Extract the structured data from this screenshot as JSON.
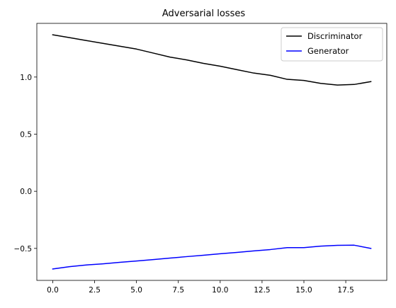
{
  "chart_data": {
    "type": "line",
    "title": "Adversarial losses",
    "xlabel": "",
    "ylabel": "",
    "xlim": [
      -0.95,
      19.95
    ],
    "ylim": [
      -0.78,
      1.47
    ],
    "xticks": [
      0.0,
      2.5,
      5.0,
      7.5,
      10.0,
      12.5,
      15.0,
      17.5
    ],
    "xtick_labels": [
      "0.0",
      "2.5",
      "5.0",
      "7.5",
      "10.0",
      "12.5",
      "15.0",
      "17.5"
    ],
    "yticks": [
      -0.5,
      0.0,
      0.5,
      1.0
    ],
    "ytick_labels": [
      "−0.5",
      "0.0",
      "0.5",
      "1.0"
    ],
    "grid": false,
    "legend_position": "top-right",
    "x": [
      0,
      1,
      2,
      3,
      4,
      5,
      6,
      7,
      8,
      9,
      10,
      11,
      12,
      13,
      14,
      15,
      16,
      17,
      18,
      19
    ],
    "series": [
      {
        "name": "Discriminator",
        "color": "#000000",
        "values": [
          1.37,
          1.345,
          1.32,
          1.295,
          1.27,
          1.245,
          1.21,
          1.175,
          1.15,
          1.12,
          1.095,
          1.065,
          1.035,
          1.015,
          0.98,
          0.97,
          0.945,
          0.93,
          0.935,
          0.96
        ]
      },
      {
        "name": "Generator",
        "color": "#0000ff",
        "values": [
          -0.68,
          -0.66,
          -0.645,
          -0.635,
          -0.622,
          -0.61,
          -0.598,
          -0.585,
          -0.572,
          -0.56,
          -0.547,
          -0.535,
          -0.522,
          -0.51,
          -0.493,
          -0.493,
          -0.48,
          -0.473,
          -0.472,
          -0.5
        ]
      }
    ]
  }
}
